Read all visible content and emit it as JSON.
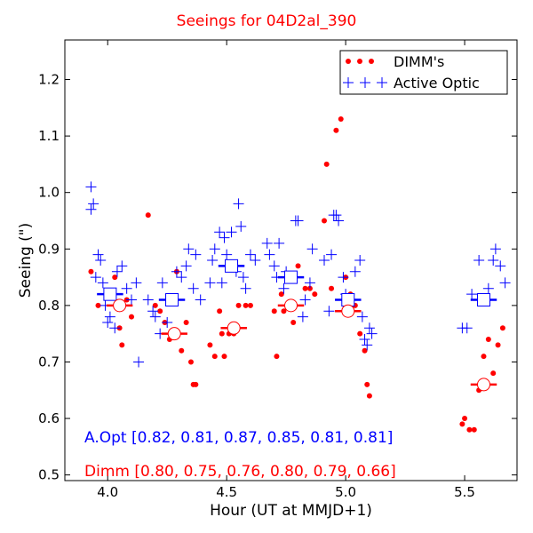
{
  "chart_data": {
    "type": "scatter",
    "title": "Seeings for 04D2al_390",
    "xlabel": "Hour (UT at MMJD+1)",
    "ylabel": "Seeing (\")",
    "xlim": [
      3.82,
      5.72
    ],
    "ylim": [
      0.49,
      1.27
    ],
    "xticks": [
      4.0,
      4.5,
      5.0,
      5.5
    ],
    "xtick_labels": [
      "4.0",
      "4.5",
      "5.0",
      "5.5"
    ],
    "yticks": [
      0.5,
      0.6,
      0.7,
      0.8,
      0.9,
      1.0,
      1.1,
      1.2
    ],
    "ytick_labels": [
      "0.5",
      "0.6",
      "0.7",
      "0.8",
      "0.9",
      "1.0",
      "1.1",
      "1.2"
    ],
    "grid": false,
    "legend_position": "top-right",
    "series": [
      {
        "name": "DIMM's",
        "marker": "dot",
        "color": "#ff0000",
        "points": [
          [
            3.93,
            0.86
          ],
          [
            3.96,
            0.8
          ],
          [
            4.03,
            0.85
          ],
          [
            4.05,
            0.76
          ],
          [
            4.06,
            0.73
          ],
          [
            4.08,
            0.81
          ],
          [
            4.1,
            0.78
          ],
          [
            4.17,
            0.96
          ],
          [
            4.2,
            0.8
          ],
          [
            4.22,
            0.79
          ],
          [
            4.24,
            0.77
          ],
          [
            4.26,
            0.74
          ],
          [
            4.29,
            0.86
          ],
          [
            4.31,
            0.72
          ],
          [
            4.33,
            0.77
          ],
          [
            4.35,
            0.7
          ],
          [
            4.36,
            0.66
          ],
          [
            4.37,
            0.66
          ],
          [
            4.43,
            0.73
          ],
          [
            4.45,
            0.71
          ],
          [
            4.47,
            0.79
          ],
          [
            4.48,
            0.75
          ],
          [
            4.49,
            0.71
          ],
          [
            4.51,
            0.75
          ],
          [
            4.53,
            0.75
          ],
          [
            4.55,
            0.8
          ],
          [
            4.58,
            0.8
          ],
          [
            4.6,
            0.8
          ],
          [
            4.7,
            0.79
          ],
          [
            4.71,
            0.71
          ],
          [
            4.73,
            0.82
          ],
          [
            4.74,
            0.79
          ],
          [
            4.76,
            0.8
          ],
          [
            4.78,
            0.77
          ],
          [
            4.8,
            0.87
          ],
          [
            4.83,
            0.83
          ],
          [
            4.85,
            0.83
          ],
          [
            4.87,
            0.82
          ],
          [
            4.91,
            0.95
          ],
          [
            4.92,
            1.05
          ],
          [
            4.94,
            0.83
          ],
          [
            4.96,
            1.11
          ],
          [
            4.98,
            1.13
          ],
          [
            5.0,
            0.85
          ],
          [
            5.02,
            0.82
          ],
          [
            5.04,
            0.8
          ],
          [
            5.06,
            0.75
          ],
          [
            5.08,
            0.72
          ],
          [
            5.09,
            0.66
          ],
          [
            5.1,
            0.64
          ],
          [
            5.49,
            0.59
          ],
          [
            5.5,
            0.6
          ],
          [
            5.52,
            0.58
          ],
          [
            5.54,
            0.58
          ],
          [
            5.56,
            0.65
          ],
          [
            5.58,
            0.71
          ],
          [
            5.6,
            0.74
          ],
          [
            5.62,
            0.68
          ],
          [
            5.64,
            0.73
          ],
          [
            5.66,
            0.76
          ]
        ],
        "bin_medians": [
          {
            "x": 4.05,
            "y": 0.8
          },
          {
            "x": 4.28,
            "y": 0.75
          },
          {
            "x": 4.53,
            "y": 0.76
          },
          {
            "x": 4.77,
            "y": 0.8
          },
          {
            "x": 5.01,
            "y": 0.79
          },
          {
            "x": 5.58,
            "y": 0.66
          }
        ]
      },
      {
        "name": "Active Optic",
        "marker": "plus",
        "color": "#0000ff",
        "points": [
          [
            3.93,
            1.01
          ],
          [
            3.93,
            0.97
          ],
          [
            3.94,
            0.98
          ],
          [
            3.95,
            0.85
          ],
          [
            3.96,
            0.89
          ],
          [
            3.97,
            0.88
          ],
          [
            3.98,
            0.84
          ],
          [
            3.99,
            0.8
          ],
          [
            4.0,
            0.77
          ],
          [
            4.01,
            0.78
          ],
          [
            4.02,
            0.82
          ],
          [
            4.03,
            0.76
          ],
          [
            4.04,
            0.86
          ],
          [
            4.06,
            0.87
          ],
          [
            4.08,
            0.83
          ],
          [
            4.1,
            0.81
          ],
          [
            4.12,
            0.84
          ],
          [
            4.13,
            0.7
          ],
          [
            4.17,
            0.81
          ],
          [
            4.19,
            0.79
          ],
          [
            4.2,
            0.78
          ],
          [
            4.22,
            0.75
          ],
          [
            4.23,
            0.84
          ],
          [
            4.25,
            0.77
          ],
          [
            4.27,
            0.81
          ],
          [
            4.29,
            0.86
          ],
          [
            4.31,
            0.85
          ],
          [
            4.33,
            0.87
          ],
          [
            4.34,
            0.9
          ],
          [
            4.36,
            0.83
          ],
          [
            4.37,
            0.89
          ],
          [
            4.39,
            0.81
          ],
          [
            4.43,
            0.84
          ],
          [
            4.44,
            0.88
          ],
          [
            4.45,
            0.9
          ],
          [
            4.47,
            0.93
          ],
          [
            4.48,
            0.84
          ],
          [
            4.49,
            0.92
          ],
          [
            4.5,
            0.89
          ],
          [
            4.52,
            0.93
          ],
          [
            4.54,
            0.86
          ],
          [
            4.55,
            0.98
          ],
          [
            4.56,
            0.94
          ],
          [
            4.57,
            0.85
          ],
          [
            4.58,
            0.83
          ],
          [
            4.6,
            0.89
          ],
          [
            4.62,
            0.88
          ],
          [
            4.67,
            0.91
          ],
          [
            4.68,
            0.89
          ],
          [
            4.7,
            0.87
          ],
          [
            4.71,
            0.85
          ],
          [
            4.72,
            0.91
          ],
          [
            4.74,
            0.83
          ],
          [
            4.75,
            0.86
          ],
          [
            4.77,
            0.85
          ],
          [
            4.79,
            0.95
          ],
          [
            4.8,
            0.95
          ],
          [
            4.82,
            0.78
          ],
          [
            4.83,
            0.81
          ],
          [
            4.85,
            0.84
          ],
          [
            4.86,
            0.9
          ],
          [
            4.91,
            0.88
          ],
          [
            4.93,
            0.79
          ],
          [
            4.94,
            0.89
          ],
          [
            4.95,
            0.96
          ],
          [
            4.96,
            0.96
          ],
          [
            4.97,
            0.95
          ],
          [
            4.99,
            0.85
          ],
          [
            5.0,
            0.82
          ],
          [
            5.02,
            0.81
          ],
          [
            5.04,
            0.86
          ],
          [
            5.06,
            0.88
          ],
          [
            5.07,
            0.78
          ],
          [
            5.08,
            0.74
          ],
          [
            5.09,
            0.73
          ],
          [
            5.1,
            0.76
          ],
          [
            5.11,
            0.75
          ],
          [
            5.49,
            0.76
          ],
          [
            5.51,
            0.76
          ],
          [
            5.53,
            0.82
          ],
          [
            5.56,
            0.88
          ],
          [
            5.58,
            0.81
          ],
          [
            5.6,
            0.83
          ],
          [
            5.62,
            0.88
          ],
          [
            5.63,
            0.9
          ],
          [
            5.65,
            0.87
          ],
          [
            5.67,
            0.84
          ]
        ],
        "bin_medians": [
          {
            "x": 4.01,
            "y": 0.82
          },
          {
            "x": 4.27,
            "y": 0.81
          },
          {
            "x": 4.52,
            "y": 0.87
          },
          {
            "x": 4.77,
            "y": 0.85
          },
          {
            "x": 5.01,
            "y": 0.81
          },
          {
            "x": 5.58,
            "y": 0.81
          }
        ]
      }
    ],
    "annotations": [
      {
        "text": "A.Opt [0.82, 0.81, 0.87, 0.85, 0.81, 0.81]",
        "color": "#0000ff"
      },
      {
        "text": "Dimm [0.80, 0.75, 0.76, 0.80, 0.79, 0.66]",
        "color": "#ff0000"
      }
    ]
  }
}
